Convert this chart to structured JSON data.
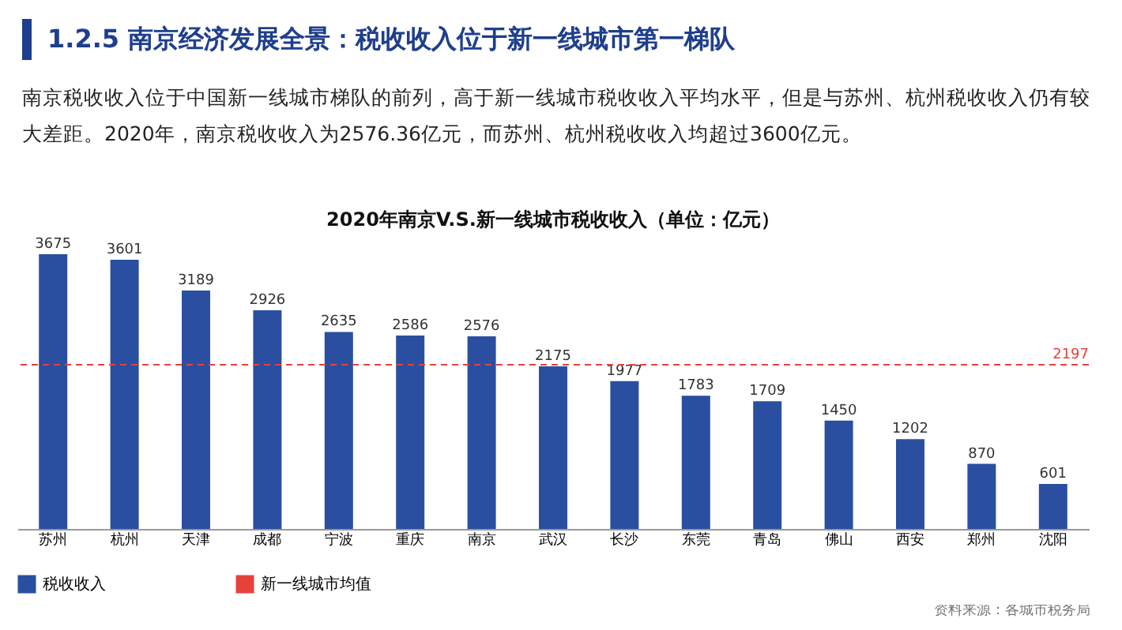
{
  "chart_data": {
    "type": "bar",
    "title": "2020年南京V.S.新一线城市税收收入（单位：亿元）",
    "categories": [
      "苏州",
      "杭州",
      "天津",
      "成都",
      "宁波",
      "重庆",
      "南京",
      "武汉",
      "长沙",
      "东莞",
      "青岛",
      "佛山",
      "西安",
      "郑州",
      "沈阳"
    ],
    "series": [
      {
        "name": "税收收入",
        "color": "#2a4fa0",
        "values": [
          3675,
          3601,
          3189,
          2926,
          2635,
          2586,
          2576,
          2175,
          1977,
          1783,
          1709,
          1450,
          1202,
          870,
          601
        ]
      }
    ],
    "data_labels": true,
    "ref_lines": [
      {
        "axis": "y",
        "value": 2197,
        "label": "新一线城市均值",
        "color": "#e8413c",
        "line_style": "dashed"
      }
    ],
    "legend": "bottom",
    "annotations": [
      "1.2.5 南京经济发展全景：税收收入位于新一线城市第一梯队",
      "南京税收收入位于中国新一线城市梯队的前列，高于新一线城市税收收入平均水平，但是与苏州、杭州税收收入仍有较大差距。2020年，南京税收收入为2576.36亿元，而苏州、杭州税收收入均超过3600亿元。",
      "资料来源：各城市税务局",
      {
        "text": "2197",
        "y": 2197
      }
    ]
  }
}
